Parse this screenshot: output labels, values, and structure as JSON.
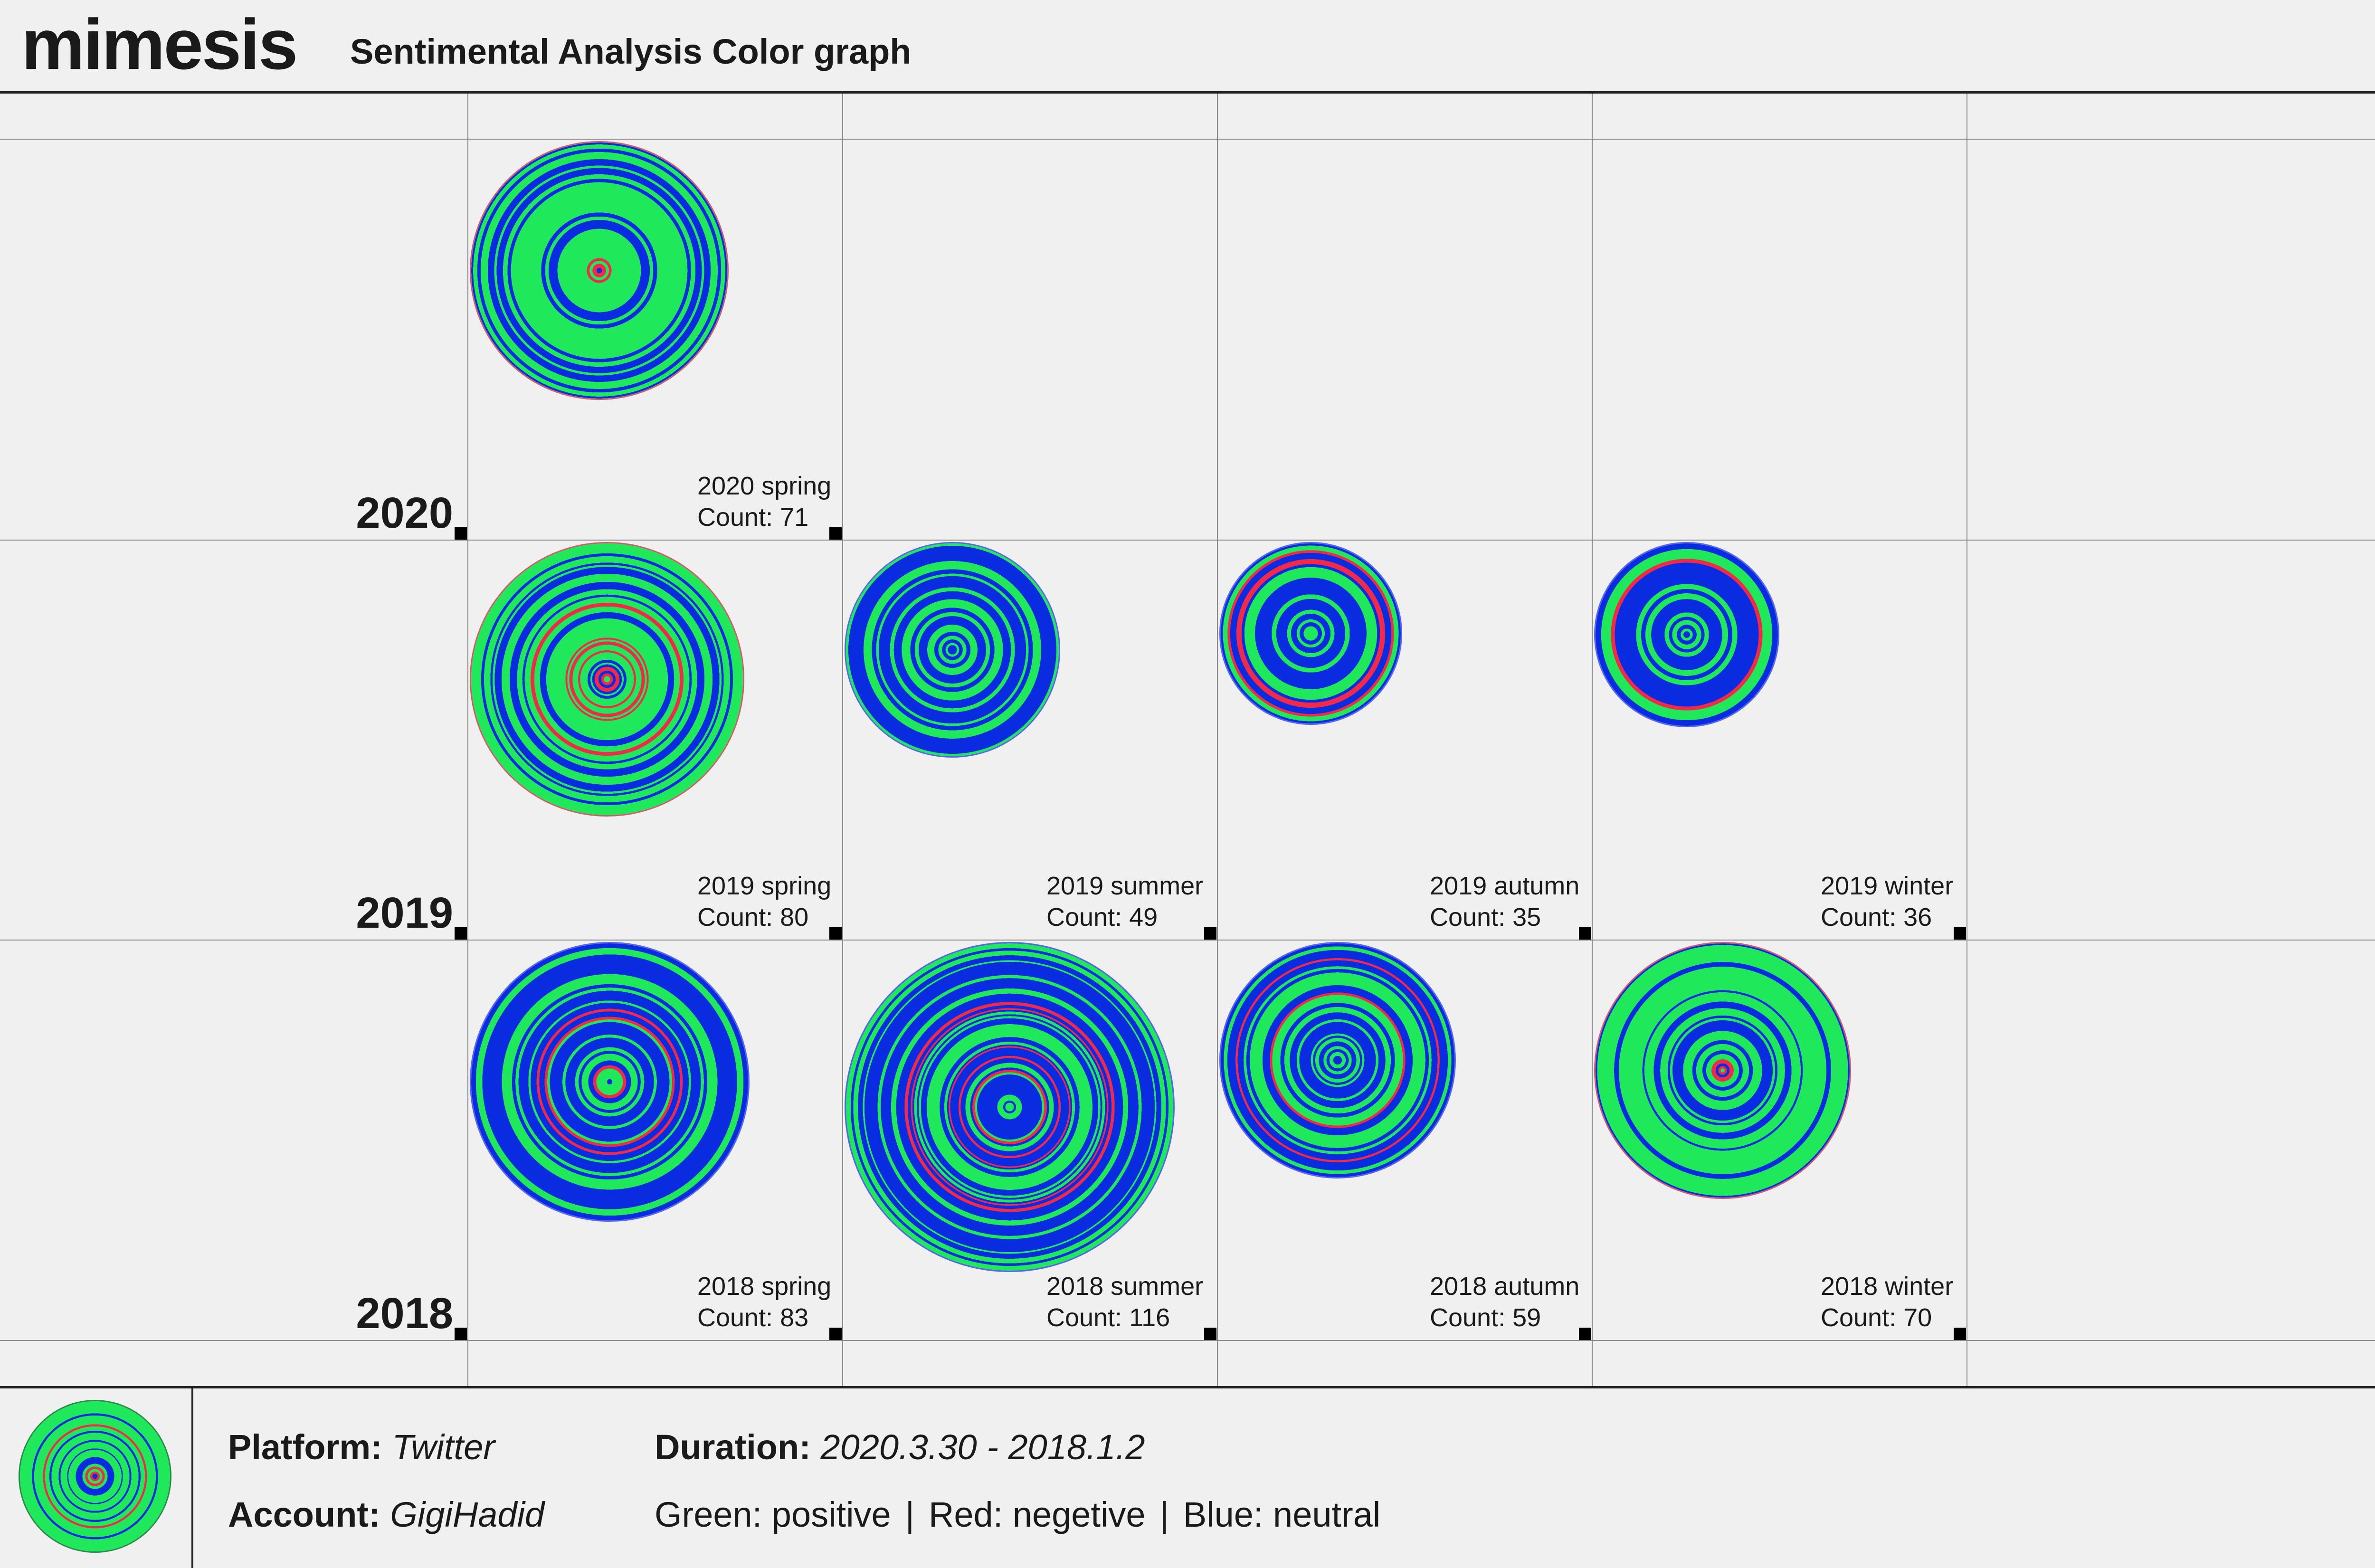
{
  "header": {
    "logo": "mimesis",
    "title": "Sentimental Analysis Color graph"
  },
  "colors": {
    "positive": "#1fe85a",
    "negative": "#f12a4a",
    "neutral": "#0a2ce0",
    "background": "#f1f0f1"
  },
  "chart_data": {
    "type": "bubble-grid",
    "title": "Sentimental Analysis Color graph",
    "rows": [
      "2020",
      "2019",
      "2018"
    ],
    "columns": [
      "spring",
      "summer",
      "autumn",
      "winter"
    ],
    "cells": [
      {
        "year": "2020",
        "season": "spring",
        "label": "2020 spring",
        "count_text": "Count: 71",
        "count": 71,
        "dominant": "positive"
      },
      {
        "year": "2019",
        "season": "spring",
        "label": "2019 spring",
        "count_text": "Count: 80",
        "count": 80,
        "dominant": "positive"
      },
      {
        "year": "2019",
        "season": "summer",
        "label": "2019 summer",
        "count_text": "Count: 49",
        "count": 49,
        "dominant": "neutral"
      },
      {
        "year": "2019",
        "season": "autumn",
        "label": "2019 autumn",
        "count_text": "Count: 35",
        "count": 35,
        "dominant": "neutral"
      },
      {
        "year": "2019",
        "season": "winter",
        "label": "2019 winter",
        "count_text": "Count: 36",
        "count": 36,
        "dominant": "neutral"
      },
      {
        "year": "2018",
        "season": "spring",
        "label": "2018 spring",
        "count_text": "Count: 83",
        "count": 83,
        "dominant": "neutral"
      },
      {
        "year": "2018",
        "season": "summer",
        "label": "2018 summer",
        "count_text": "Count: 116",
        "count": 116,
        "dominant": "neutral"
      },
      {
        "year": "2018",
        "season": "autumn",
        "label": "2018 autumn",
        "count_text": "Count: 59",
        "count": 59,
        "dominant": "neutral"
      },
      {
        "year": "2018",
        "season": "winter",
        "label": "2018 winter",
        "count_text": "Count: 70",
        "count": 70,
        "dominant": "positive"
      }
    ]
  },
  "footer": {
    "platform_label": "Platform:",
    "platform_value": "Twitter",
    "account_label": "Account:",
    "account_value": "GigiHadid",
    "duration_label": "Duration:",
    "duration_value": "2020.3.30 - 2018.1.2",
    "legend": [
      "Green: positive",
      "Red: negetive",
      "Blue: neutral"
    ],
    "legend_separator": "|"
  }
}
